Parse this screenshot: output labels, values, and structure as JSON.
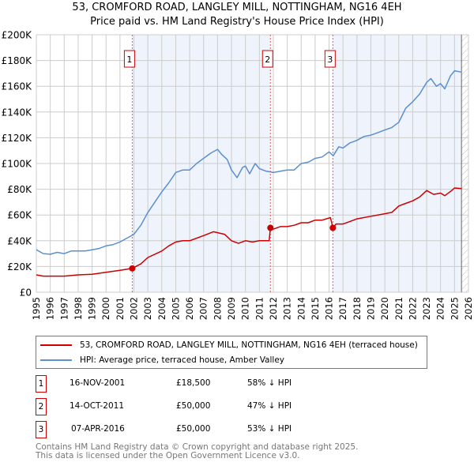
{
  "title": "53, CROMFORD ROAD, LANGLEY MILL, NOTTINGHAM, NG16 4EH",
  "subtitle": "Price paid vs. HM Land Registry's House Price Index (HPI)",
  "chart_data": {
    "type": "line",
    "title": "53, CROMFORD ROAD, LANGLEY MILL, NOTTINGHAM, NG16 4EH",
    "subtitle": "Price paid vs. HM Land Registry's House Price Index (HPI)",
    "xlim": [
      1995,
      2026
    ],
    "ylim": [
      0,
      200000
    ],
    "grid": true,
    "x_ticks": [
      "1995",
      "1996",
      "1997",
      "1998",
      "1999",
      "2000",
      "2001",
      "2002",
      "2003",
      "2004",
      "2005",
      "2006",
      "2007",
      "2008",
      "2009",
      "2010",
      "2011",
      "2012",
      "2013",
      "2014",
      "2015",
      "2016",
      "2017",
      "2018",
      "2019",
      "2020",
      "2021",
      "2022",
      "2023",
      "2024",
      "2025",
      "2026"
    ],
    "y_ticks": [
      {
        "v": 0,
        "label": "£0"
      },
      {
        "v": 20000,
        "label": "£20K"
      },
      {
        "v": 40000,
        "label": "£40K"
      },
      {
        "v": 60000,
        "label": "£60K"
      },
      {
        "v": 80000,
        "label": "£80K"
      },
      {
        "v": 100000,
        "label": "£100K"
      },
      {
        "v": 120000,
        "label": "£120K"
      },
      {
        "v": 140000,
        "label": "£140K"
      },
      {
        "v": 160000,
        "label": "£160K"
      },
      {
        "v": 180000,
        "label": "£180K"
      },
      {
        "v": 200000,
        "label": "£200K"
      }
    ],
    "shaded_ranges": [
      [
        2001.88,
        2011.79
      ],
      [
        2016.27,
        2025.5
      ]
    ],
    "hatched_range": [
      2025.5,
      2026
    ],
    "series": [
      {
        "name": "53, CROMFORD ROAD, LANGLEY MILL, NOTTINGHAM, NG16 4EH (terraced house)",
        "color": "#cc0000",
        "x": [
          1995,
          1995.5,
          1996,
          1997,
          1998,
          1999,
          2000,
          2001,
          2001.88,
          2002.5,
          2003,
          2004,
          2004.5,
          2005,
          2005.5,
          2006,
          2007,
          2007.7,
          2008.5,
          2009,
          2009.5,
          2010,
          2010.5,
          2011,
          2011.7,
          2011.79,
          2012,
          2012.5,
          2013,
          2013.5,
          2014,
          2014.5,
          2015,
          2015.5,
          2016.1,
          2016.27,
          2016.5,
          2017,
          2017.5,
          2018,
          2019,
          2020,
          2020.5,
          2021,
          2021.5,
          2022,
          2022.5,
          2023,
          2023.5,
          2024,
          2024.3,
          2024.8,
          2025,
          2025.5
        ],
        "y": [
          13500,
          12500,
          12500,
          12500,
          13500,
          14000,
          15500,
          17000,
          18500,
          22000,
          27000,
          32000,
          36000,
          39000,
          40000,
          40000,
          44000,
          47000,
          45000,
          40000,
          38000,
          40000,
          39000,
          40000,
          40000,
          50000,
          49000,
          51000,
          51000,
          52000,
          54000,
          54000,
          56000,
          56000,
          58000,
          50000,
          53000,
          53000,
          55000,
          57000,
          59000,
          61000,
          62000,
          67000,
          69000,
          71000,
          74000,
          79000,
          76000,
          77000,
          75000,
          79000,
          81000,
          80500
        ]
      },
      {
        "name": "HPI: Average price, terraced house, Amber Valley",
        "color": "#5b8fd0",
        "x": [
          1995,
          1995.5,
          1996,
          1996.5,
          1997,
          1997.5,
          1998,
          1998.5,
          1999,
          1999.5,
          2000,
          2000.5,
          2001,
          2001.5,
          2002,
          2002.5,
          2003,
          2003.5,
          2004,
          2004.5,
          2005,
          2005.5,
          2006,
          2006.5,
          2007,
          2007.5,
          2008,
          2008.3,
          2008.7,
          2009,
          2009.4,
          2009.8,
          2010,
          2010.3,
          2010.7,
          2011,
          2011.5,
          2012,
          2012.5,
          2013,
          2013.5,
          2014,
          2014.5,
          2015,
          2015.5,
          2016,
          2016.3,
          2016.7,
          2017,
          2017.5,
          2018,
          2018.5,
          2019,
          2019.5,
          2020,
          2020.5,
          2021,
          2021.5,
          2022,
          2022.5,
          2023,
          2023.3,
          2023.7,
          2024,
          2024.3,
          2024.7,
          2025,
          2025.5
        ],
        "y": [
          33000,
          30000,
          29500,
          31000,
          30000,
          32000,
          32000,
          32000,
          33000,
          34000,
          36000,
          37000,
          39000,
          42000,
          45000,
          52000,
          62000,
          70000,
          78000,
          85000,
          93000,
          95000,
          95000,
          100000,
          104000,
          108000,
          111000,
          107000,
          103000,
          95000,
          89000,
          97000,
          98000,
          92000,
          100000,
          96000,
          94000,
          93000,
          94000,
          95000,
          95000,
          100000,
          101000,
          104000,
          105000,
          109000,
          106000,
          113000,
          112000,
          116000,
          118000,
          121000,
          122000,
          124000,
          126000,
          128000,
          132000,
          143000,
          148000,
          154000,
          163000,
          166000,
          160000,
          162000,
          158000,
          168000,
          172000,
          171000
        ]
      }
    ],
    "sales": [
      {
        "n": "1",
        "x": 2001.88,
        "y": 18500
      },
      {
        "n": "2",
        "x": 2011.79,
        "y": 50000
      },
      {
        "n": "3",
        "x": 2016.27,
        "y": 50000
      }
    ]
  },
  "legend": {
    "property": "53, CROMFORD ROAD, LANGLEY MILL, NOTTINGHAM, NG16 4EH (terraced house)",
    "hpi": "HPI: Average price, terraced house, Amber Valley"
  },
  "sales_table": [
    {
      "n": "1",
      "date": "16-NOV-2001",
      "price": "£18,500",
      "hpi": "58% ↓ HPI"
    },
    {
      "n": "2",
      "date": "14-OCT-2011",
      "price": "£50,000",
      "hpi": "47% ↓ HPI"
    },
    {
      "n": "3",
      "date": "07-APR-2016",
      "price": "£50,000",
      "hpi": "53% ↓ HPI"
    }
  ],
  "footer": {
    "line1": "Contains HM Land Registry data © Crown copyright and database right 2025.",
    "line2": "This data is licensed under the Open Government Licence v3.0."
  }
}
